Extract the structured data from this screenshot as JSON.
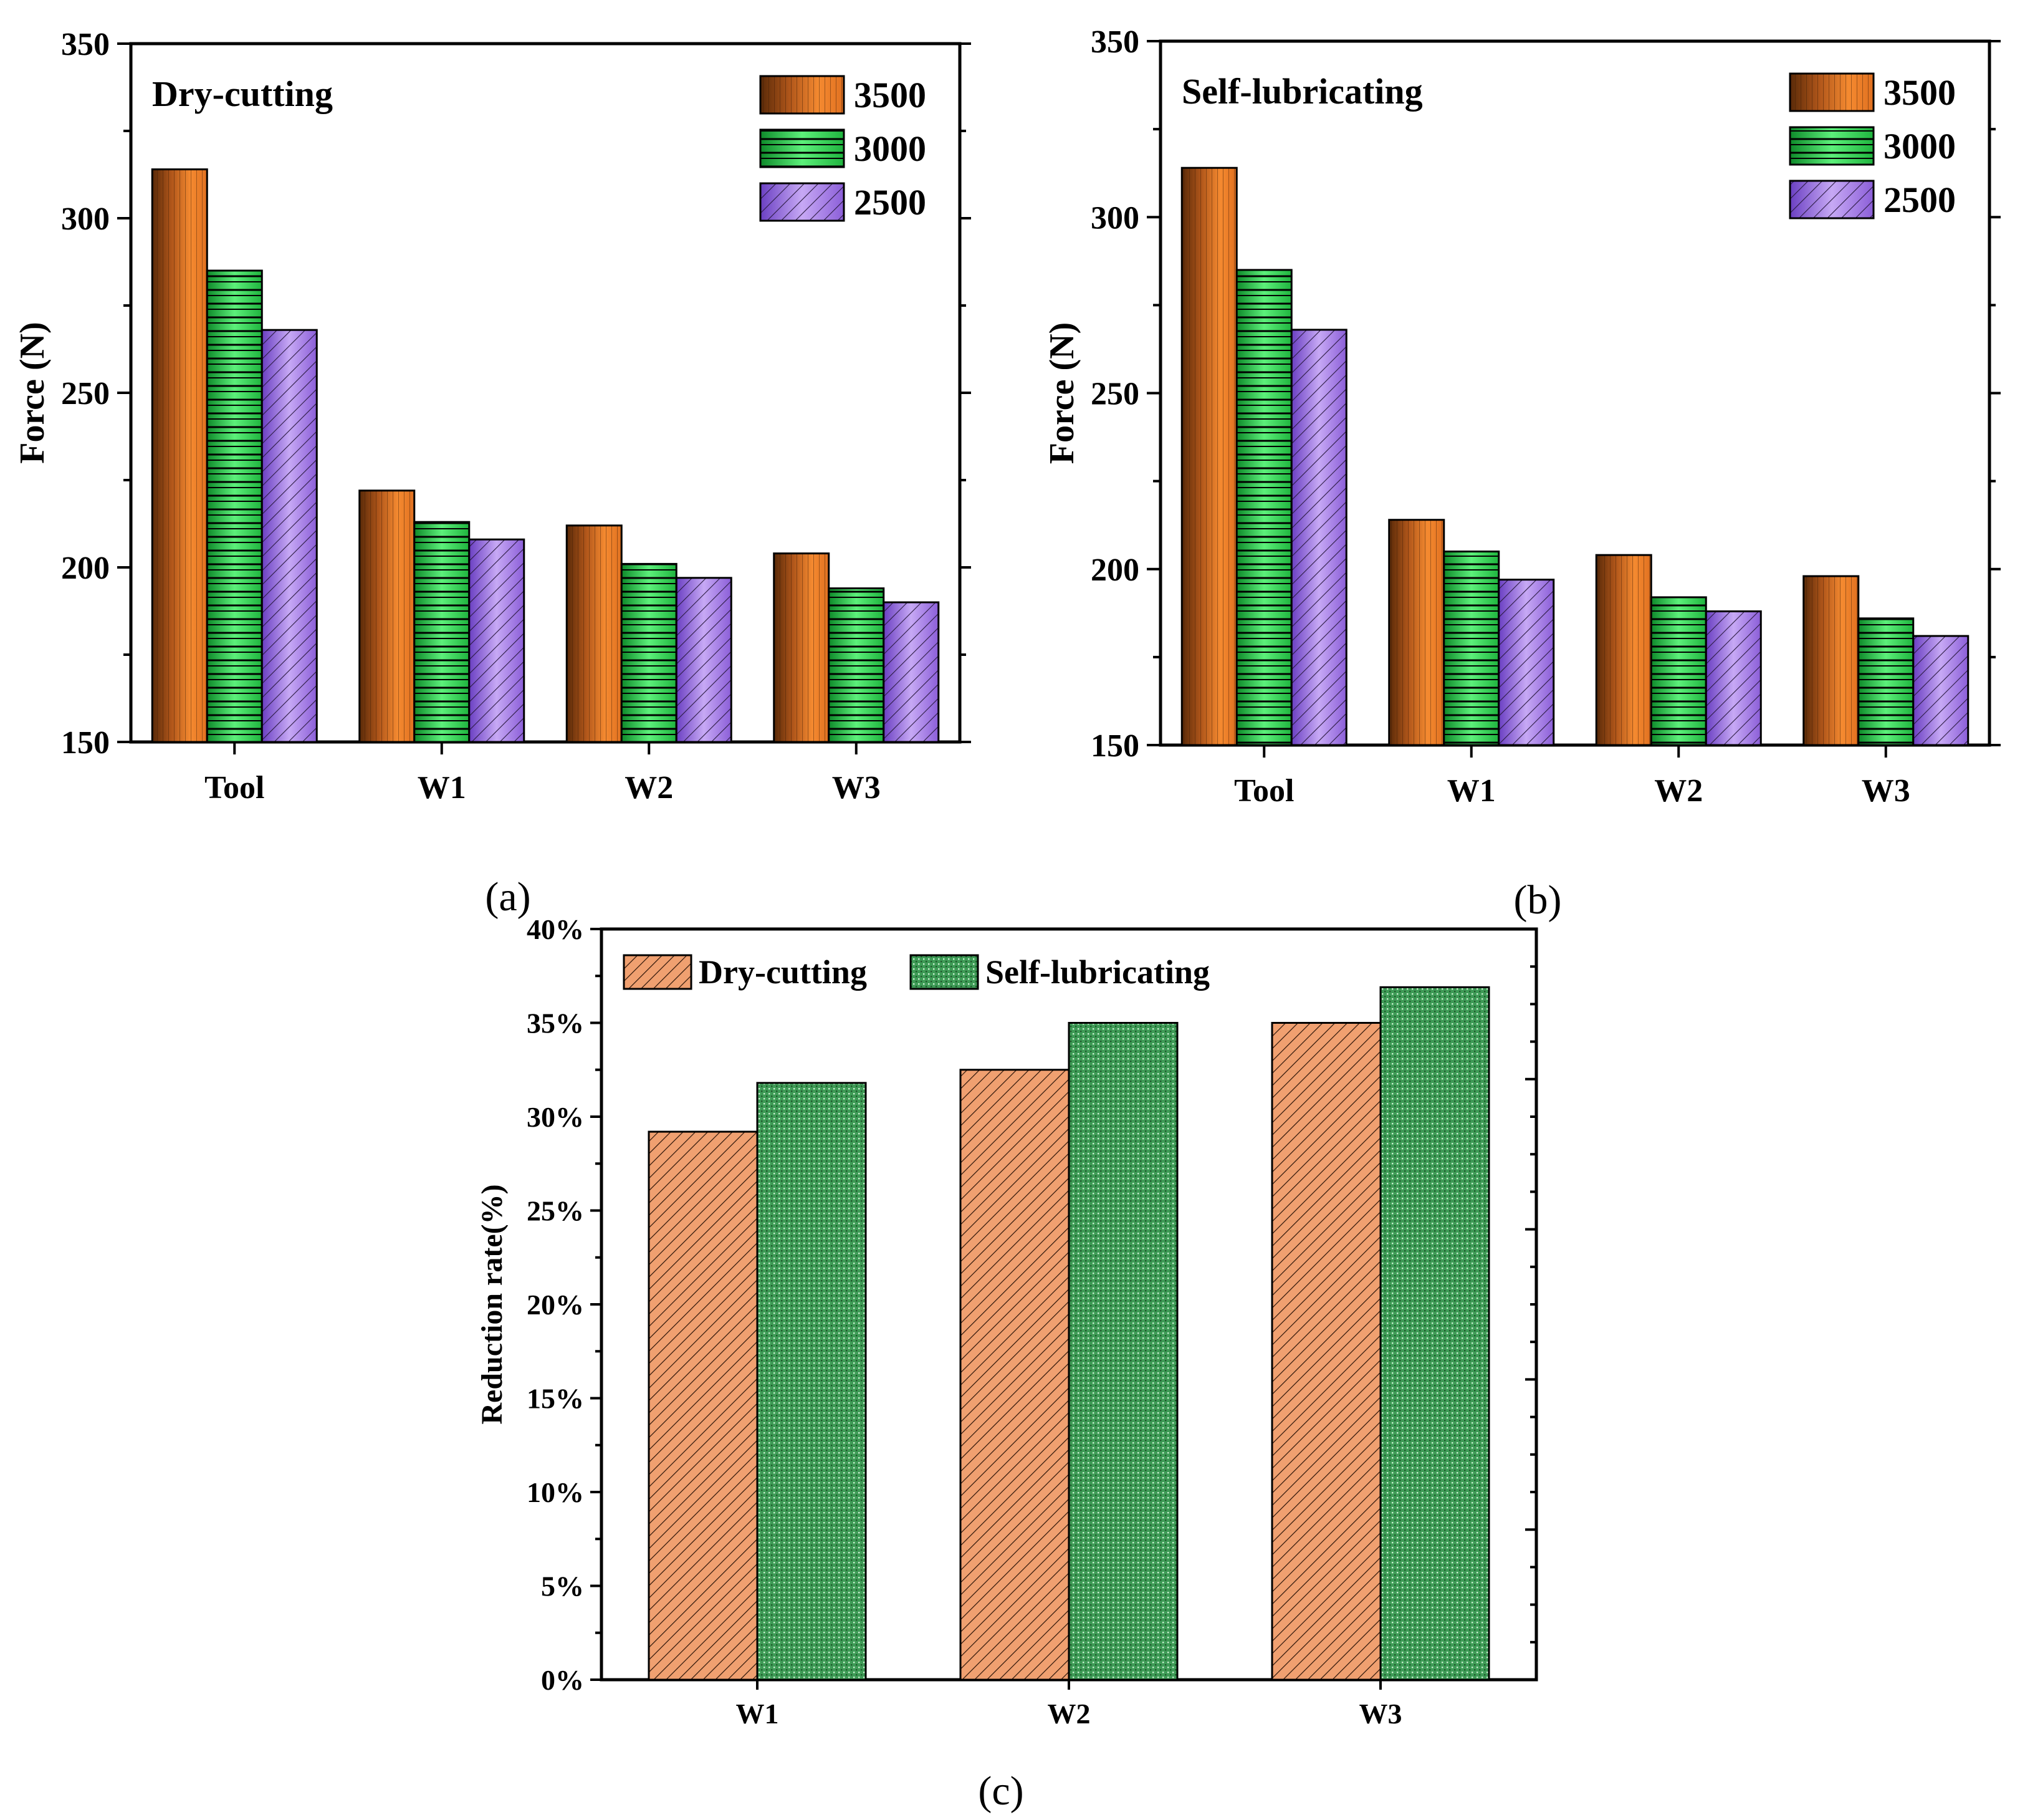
{
  "colors": {
    "orange": "#E07020",
    "green": "#22C244",
    "purple": "#A47CE6",
    "dry_fill": "#F0A070",
    "self_fill": "#4CAF64"
  },
  "chart_data": [
    {
      "id": "a",
      "type": "bar",
      "title": "Dry-cutting",
      "panel_label": "a",
      "xlabel": "",
      "ylabel": "Force (N)",
      "ylim": [
        150,
        350
      ],
      "yticks": [
        150,
        200,
        250,
        300,
        350
      ],
      "categories": [
        "Tool",
        "W1",
        "W2",
        "W3"
      ],
      "legend_position": "top-right",
      "series": [
        {
          "name": "3500",
          "values": [
            314,
            222,
            212,
            204
          ]
        },
        {
          "name": "3000",
          "values": [
            285,
            213,
            201,
            194
          ]
        },
        {
          "name": "2500",
          "values": [
            268,
            208,
            197,
            190
          ]
        }
      ]
    },
    {
      "id": "b",
      "type": "bar",
      "title": "Self-lubricating",
      "panel_label": "b",
      "xlabel": "",
      "ylabel": "Force (N)",
      "ylim": [
        150,
        350
      ],
      "yticks": [
        150,
        200,
        250,
        300,
        350
      ],
      "categories": [
        "Tool",
        "W1",
        "W2",
        "W3"
      ],
      "legend_position": "top-right",
      "series": [
        {
          "name": "3500",
          "values": [
            314,
            214,
            204,
            198
          ]
        },
        {
          "name": "3000",
          "values": [
            285,
            205,
            192,
            186
          ]
        },
        {
          "name": "2500",
          "values": [
            268,
            197,
            188,
            181
          ]
        }
      ]
    },
    {
      "id": "c",
      "type": "bar",
      "title": "",
      "panel_label": "c",
      "xlabel": "",
      "ylabel": "Reduction rate(%)",
      "ylim": [
        0,
        40
      ],
      "yticks": [
        0,
        5,
        10,
        15,
        20,
        25,
        30,
        35,
        40
      ],
      "ytick_labels": [
        "0%",
        "5%",
        "10%",
        "15%",
        "20%",
        "25%",
        "30%",
        "35%",
        "40%"
      ],
      "categories": [
        "W1",
        "W2",
        "W3"
      ],
      "legend_position": "top-left",
      "series": [
        {
          "name": "Dry-cutting",
          "values": [
            29.2,
            32.5,
            35.0
          ]
        },
        {
          "name": "Self-lubricating",
          "values": [
            31.8,
            35.0,
            36.9
          ]
        }
      ]
    }
  ]
}
